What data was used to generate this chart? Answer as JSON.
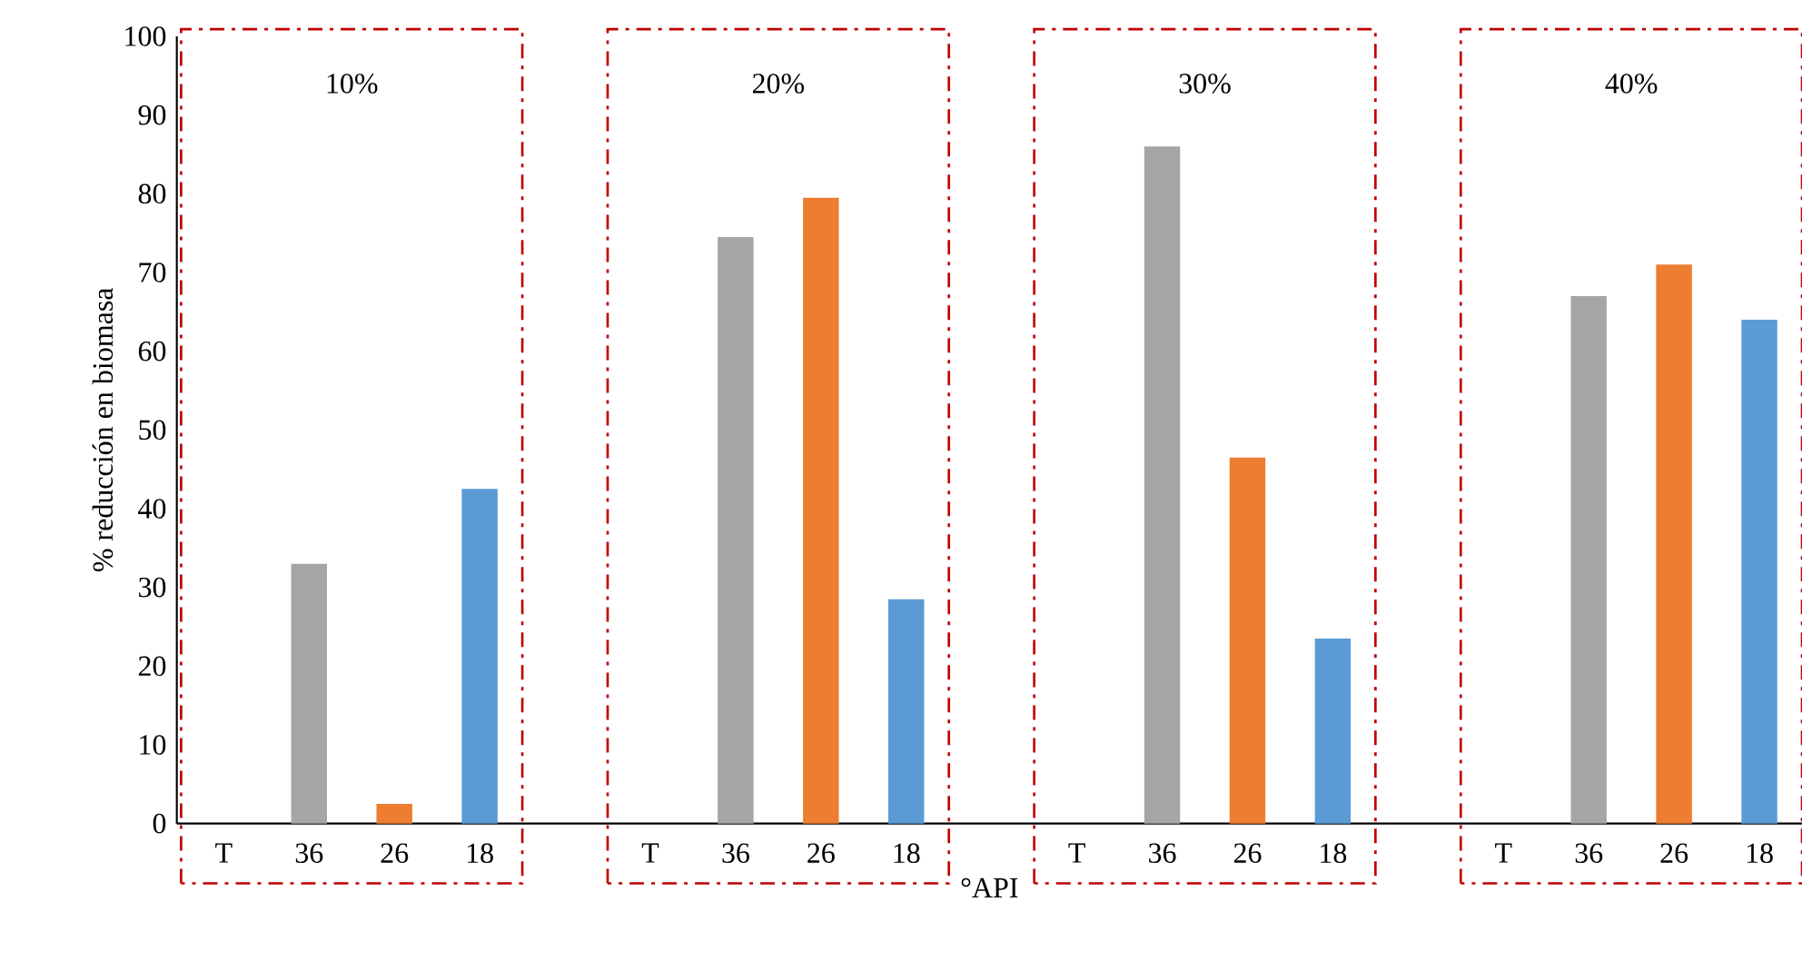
{
  "chart_data": {
    "type": "bar",
    "categories": [
      "T",
      "36",
      "26",
      "18",
      null,
      "T",
      "36",
      "26",
      "18",
      null,
      "T",
      "36",
      "26",
      "18",
      null,
      "T",
      "36",
      "26",
      "18"
    ],
    "values": [
      0,
      33,
      2.5,
      42.5,
      null,
      0,
      74.5,
      79.5,
      28.5,
      null,
      0,
      86,
      46.5,
      23.5,
      null,
      0,
      67,
      71,
      64
    ],
    "colors": [
      "#a5a5a5",
      "#a5a5a5",
      "#ed7d31",
      "#5b9bd5",
      null,
      "#a5a5a5",
      "#a5a5a5",
      "#ed7d31",
      "#5b9bd5",
      null,
      "#a5a5a5",
      "#a5a5a5",
      "#ed7d31",
      "#5b9bd5",
      null,
      "#a5a5a5",
      "#a5a5a5",
      "#ed7d31",
      "#5b9bd5"
    ],
    "ylim": [
      0,
      100
    ],
    "yticks": [
      0,
      10,
      20,
      30,
      40,
      50,
      60,
      70,
      80,
      90,
      100
    ],
    "xlabel": "°API",
    "ylabel": "% reducción en biomasa",
    "annotations": [
      "10%",
      "20%",
      "30%",
      "40%"
    ]
  }
}
